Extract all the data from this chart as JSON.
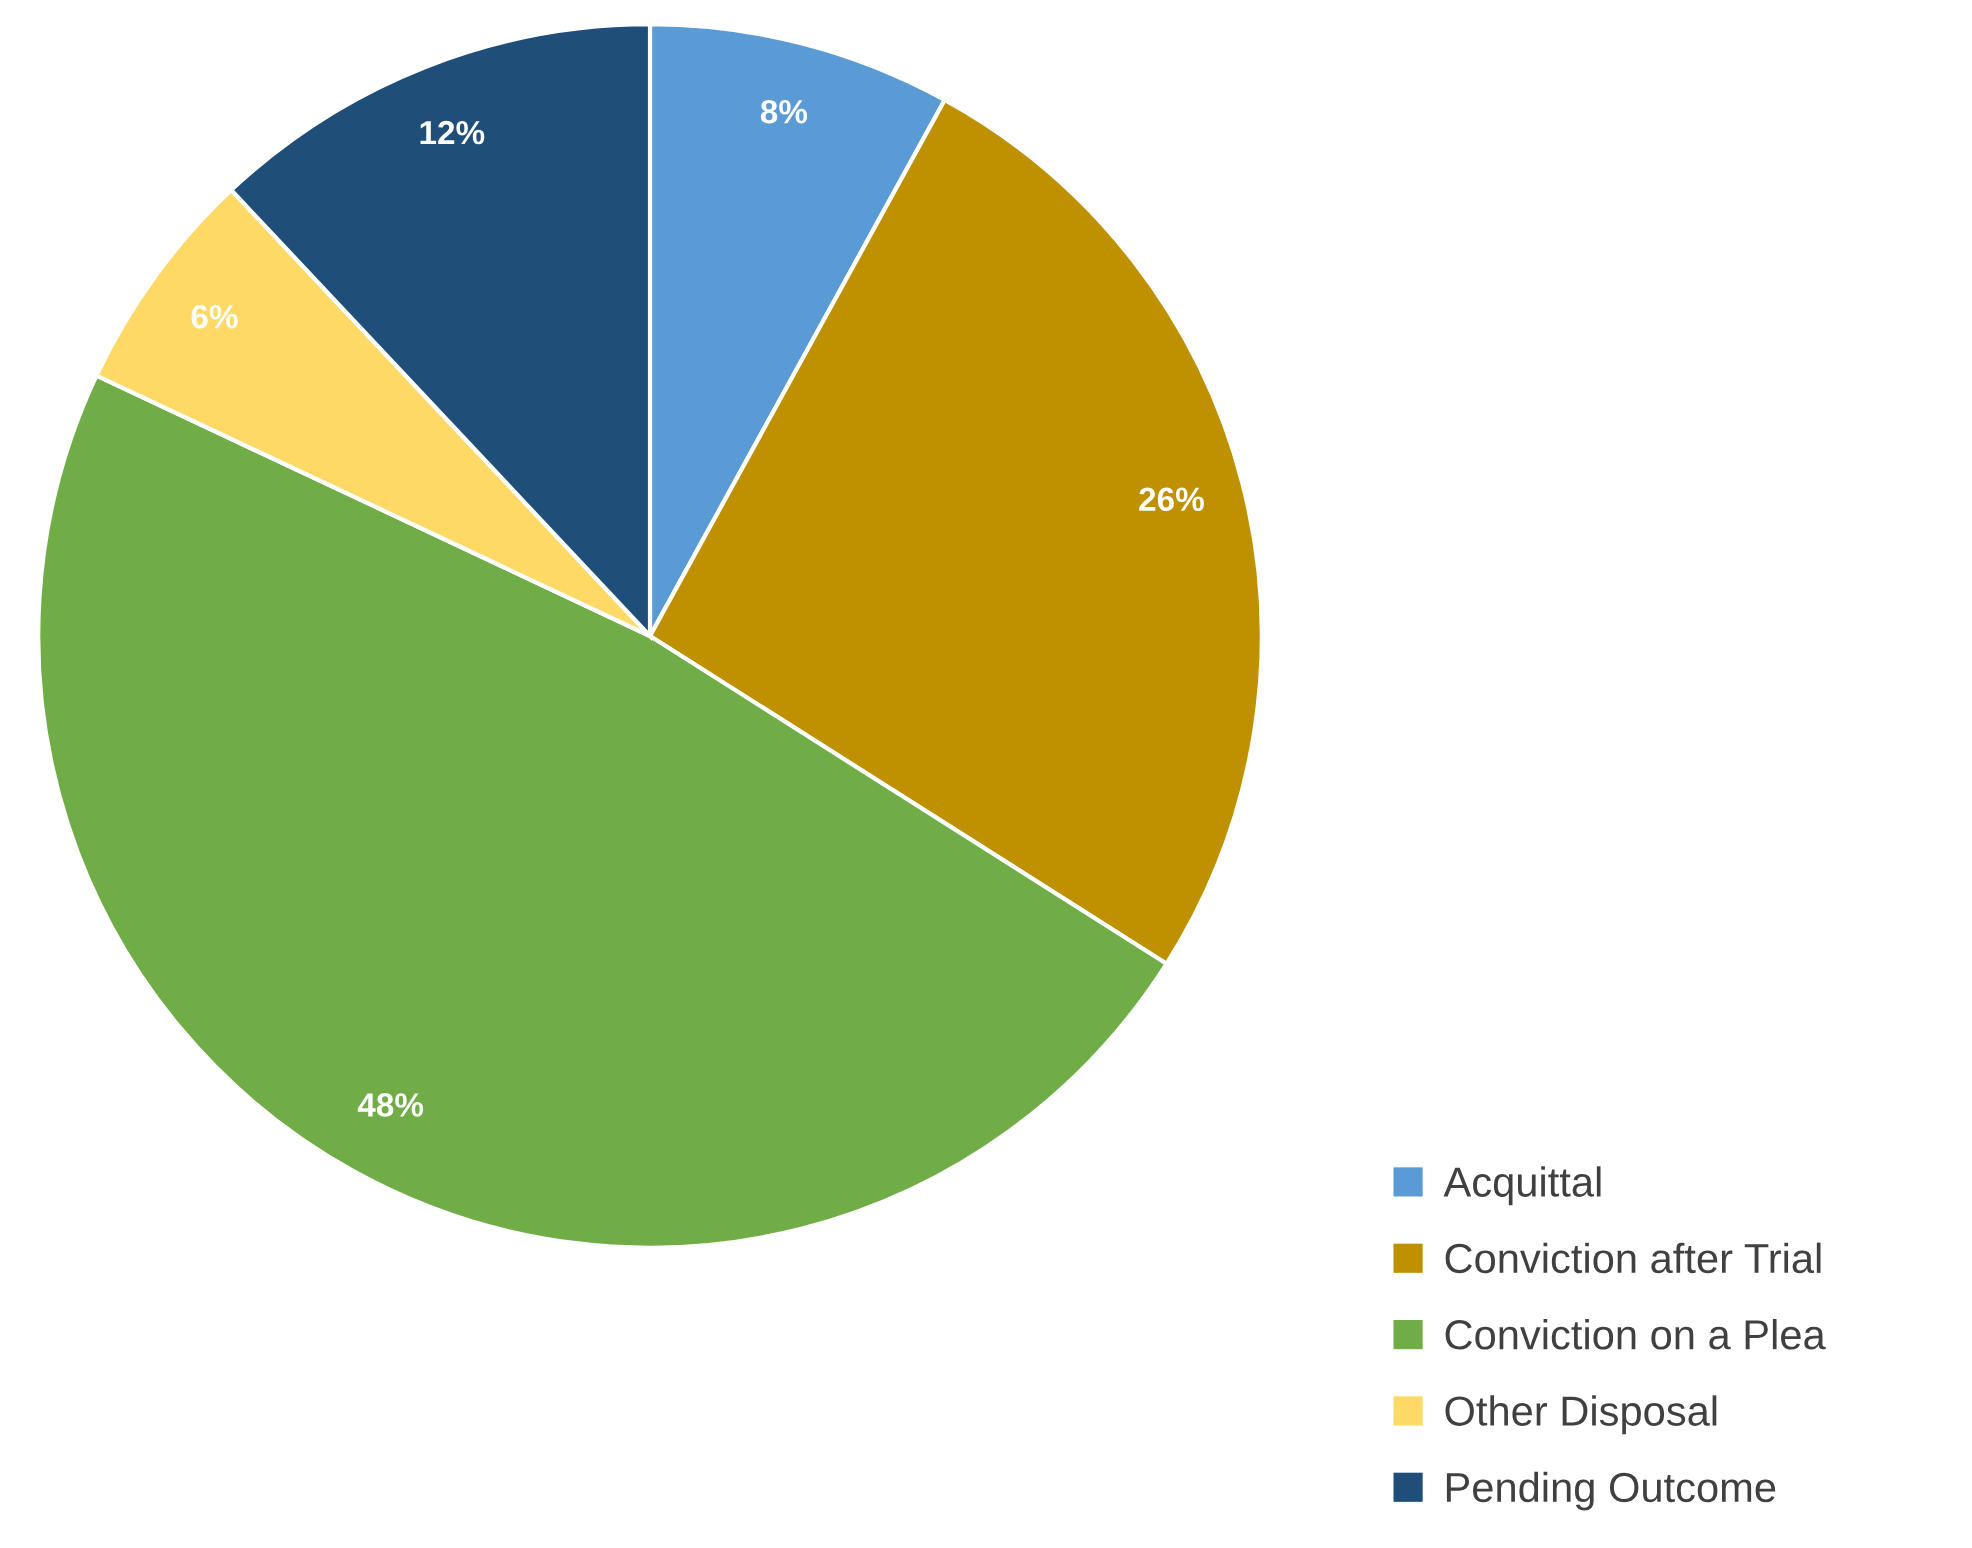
{
  "chart_data": {
    "type": "pie",
    "categories": [
      "Acquittal",
      "Conviction after Trial",
      "Conviction on a Plea",
      "Other Disposal",
      "Pending Outcome"
    ],
    "values": [
      8,
      26,
      48,
      6,
      12
    ],
    "colors": [
      "#5b9bd5",
      "#bf9000",
      "#70ad47",
      "#ffd966",
      "#1f4e79"
    ],
    "value_labels": [
      "8%",
      "26%",
      "48%",
      "6%",
      "12%"
    ],
    "legend": "bottom right"
  }
}
